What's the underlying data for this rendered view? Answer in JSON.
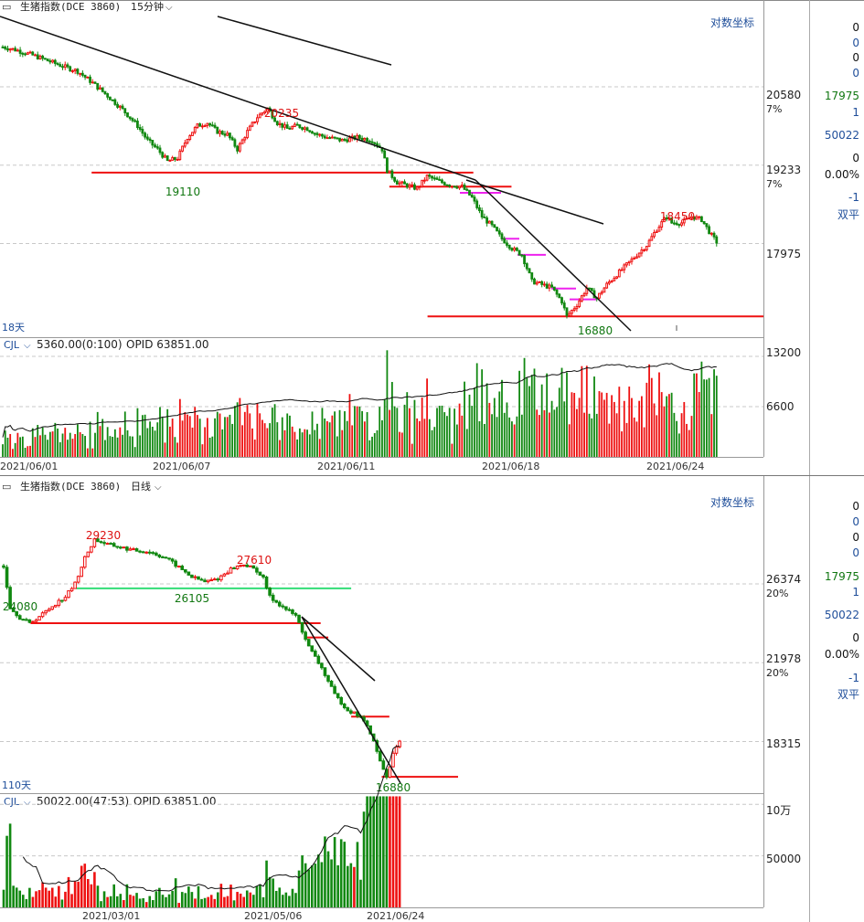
{
  "colors": {
    "up": "#ee1111",
    "down": "#118811",
    "ref_red": "#ee1111",
    "ref_green": "#33dd77",
    "ref_magenta": "#ee22ee",
    "trend": "#111111",
    "grid": "#c8c8c8",
    "axis_blue": "#1f4e9a",
    "label_red": "#dd1111",
    "label_green": "#117711"
  },
  "panels": [
    {
      "id": "intraday",
      "header": {
        "title": "生猪指数(DCE 3860)",
        "period": "15分钟",
        "log_label": "对数坐标"
      },
      "right_stats": {
        "s1": "0",
        "s2": "0",
        "s3": "0",
        "s4": "0",
        "price": "17975",
        "s6": "1",
        "vol": "50022",
        "s8": "0",
        "pct": "0.00%",
        "s10": "-1",
        "shuangping": "双平"
      },
      "span_label": "18天",
      "volume_header": {
        "label": "CJL",
        "value": "5360.00(0:100)",
        "opid": "OPID 63851.00"
      },
      "price_ticks": [
        {
          "value": 20580,
          "label": "20580",
          "pct": "7%"
        },
        {
          "value": 19233,
          "label": "19233",
          "pct": "7%"
        },
        {
          "value": 17975,
          "label": "17975",
          "pct": ""
        }
      ],
      "volume_ticks": [
        {
          "value": 13200,
          "label": "13200"
        },
        {
          "value": 6600,
          "label": "6600"
        }
      ],
      "dates": [
        "2021/06/01",
        "2021/06/07",
        "2021/06/11",
        "2021/06/18",
        "2021/06/24"
      ],
      "annotations": [
        {
          "text": "20235",
          "kind": "high"
        },
        {
          "text": "19110",
          "kind": "low"
        },
        {
          "text": "18450",
          "kind": "high"
        },
        {
          "text": "16880",
          "kind": "low"
        }
      ]
    },
    {
      "id": "daily",
      "header": {
        "title": "生猪指数(DCE 3860)",
        "period": "日线",
        "log_label": "对数坐标"
      },
      "right_stats": {
        "s1": "0",
        "s2": "0",
        "s3": "0",
        "s4": "0",
        "price": "17975",
        "s6": "1",
        "vol": "50022",
        "s8": "0",
        "pct": "0.00%",
        "s10": "-1",
        "shuangping": "双平"
      },
      "span_label": "110天",
      "volume_header": {
        "label": "CJL",
        "value": "50022.00(47:53)",
        "opid": "OPID 63851.00"
      },
      "price_ticks": [
        {
          "value": 26374,
          "label": "26374",
          "pct": "20%"
        },
        {
          "value": 21978,
          "label": "21978",
          "pct": "20%"
        },
        {
          "value": 18315,
          "label": "18315",
          "pct": ""
        }
      ],
      "volume_ticks": [
        {
          "value": 100000,
          "label": "10万"
        },
        {
          "value": 50000,
          "label": "50000"
        }
      ],
      "dates": [
        "2021/03/01",
        "2021/05/06",
        "2021/06/24"
      ],
      "annotations": [
        {
          "text": "29230",
          "kind": "high"
        },
        {
          "text": "27610",
          "kind": "high"
        },
        {
          "text": "26105",
          "kind": "low"
        },
        {
          "text": "24080",
          "kind": "low"
        },
        {
          "text": "16880",
          "kind": "low"
        }
      ]
    }
  ],
  "chart_data": [
    {
      "type": "candlestick",
      "title": "生猪指数(DCE 3860) 15分钟",
      "x_range": [
        "2021/06/01",
        "2021/06/25"
      ],
      "y_range": [
        16750,
        21800
      ],
      "log_scale": true,
      "waypoints": [
        [
          0,
          21300
        ],
        [
          5,
          21250
        ],
        [
          12,
          21150
        ],
        [
          18,
          21050
        ],
        [
          24,
          20950
        ],
        [
          30,
          20860
        ],
        [
          36,
          20650
        ],
        [
          42,
          20420
        ],
        [
          48,
          20180
        ],
        [
          54,
          19900
        ],
        [
          58,
          19650
        ],
        [
          62,
          19500
        ],
        [
          66,
          19300
        ],
        [
          70,
          19350
        ],
        [
          74,
          19700
        ],
        [
          78,
          19900
        ],
        [
          82,
          19950
        ],
        [
          86,
          19800
        ],
        [
          90,
          19750
        ],
        [
          94,
          19500
        ],
        [
          98,
          19800
        ],
        [
          102,
          20050
        ],
        [
          106,
          20200
        ],
        [
          110,
          19950
        ],
        [
          114,
          19850
        ],
        [
          118,
          19900
        ],
        [
          122,
          19850
        ],
        [
          126,
          19750
        ],
        [
          130,
          19700
        ],
        [
          136,
          19650
        ],
        [
          142,
          19700
        ],
        [
          148,
          19650
        ],
        [
          152,
          19500
        ],
        [
          154,
          19150
        ],
        [
          158,
          18950
        ],
        [
          162,
          18900
        ],
        [
          166,
          18850
        ],
        [
          170,
          19050
        ],
        [
          176,
          18950
        ],
        [
          180,
          18900
        ],
        [
          184,
          18880
        ],
        [
          188,
          18700
        ],
        [
          192,
          18400
        ],
        [
          196,
          18250
        ],
        [
          200,
          18050
        ],
        [
          204,
          17900
        ],
        [
          208,
          17800
        ],
        [
          212,
          17400
        ],
        [
          216,
          17350
        ],
        [
          220,
          17300
        ],
        [
          224,
          17100
        ],
        [
          226,
          16880
        ],
        [
          230,
          17050
        ],
        [
          234,
          17300
        ],
        [
          238,
          17150
        ],
        [
          242,
          17350
        ],
        [
          246,
          17500
        ],
        [
          250,
          17650
        ],
        [
          254,
          17800
        ],
        [
          258,
          17950
        ],
        [
          262,
          18200
        ],
        [
          266,
          18400
        ],
        [
          268,
          18300
        ],
        [
          272,
          18300
        ],
        [
          276,
          18400
        ],
        [
          280,
          18350
        ],
        [
          284,
          18100
        ],
        [
          286,
          18000
        ]
      ],
      "ref_lines": [
        {
          "y": 19110,
          "from": 0.12,
          "to": 0.62,
          "color": "ref_red"
        },
        {
          "y": 18880,
          "from": 0.51,
          "to": 0.67,
          "color": "ref_red"
        },
        {
          "y": 16880,
          "from": 0.56,
          "to": 1.0,
          "color": "ref_red"
        }
      ],
      "volume": {
        "y_max": 15600,
        "label": "CJL"
      }
    },
    {
      "type": "candlestick",
      "title": "生猪指数(DCE 3860) 日线",
      "x_range": [
        "2021/02/03",
        "2021/06/24"
      ],
      "y_range": [
        16600,
        31500
      ],
      "log_scale": true,
      "waypoints": [
        [
          0,
          27500
        ],
        [
          2,
          25000
        ],
        [
          5,
          24400
        ],
        [
          8,
          24080
        ],
        [
          12,
          24600
        ],
        [
          16,
          25200
        ],
        [
          19,
          25600
        ],
        [
          22,
          26400
        ],
        [
          25,
          28000
        ],
        [
          28,
          29230
        ],
        [
          32,
          28900
        ],
        [
          36,
          28700
        ],
        [
          40,
          28500
        ],
        [
          45,
          28400
        ],
        [
          50,
          28000
        ],
        [
          54,
          27400
        ],
        [
          58,
          26800
        ],
        [
          62,
          26500
        ],
        [
          66,
          26700
        ],
        [
          70,
          27300
        ],
        [
          74,
          27610
        ],
        [
          78,
          27200
        ],
        [
          80,
          26700
        ],
        [
          82,
          25600
        ],
        [
          86,
          25000
        ],
        [
          90,
          24500
        ],
        [
          94,
          22800
        ],
        [
          98,
          21700
        ],
        [
          102,
          20400
        ],
        [
          106,
          19700
        ],
        [
          110,
          19400
        ],
        [
          113,
          18700
        ],
        [
          116,
          17500
        ],
        [
          118,
          16880
        ],
        [
          120,
          17800
        ],
        [
          122,
          18300
        ]
      ],
      "ref_lines": [
        {
          "y": 26105,
          "from": 0.1,
          "to": 0.46,
          "color": "ref_green"
        },
        {
          "y": 24080,
          "from": 0.04,
          "to": 0.42,
          "color": "ref_red"
        },
        {
          "y": 23300,
          "from": 0.4,
          "to": 0.43,
          "color": "ref_red"
        },
        {
          "y": 19400,
          "from": 0.46,
          "to": 0.51,
          "color": "ref_red"
        },
        {
          "y": 16880,
          "from": 0.5,
          "to": 0.6,
          "color": "ref_red"
        }
      ],
      "volume": {
        "y_max": 110000,
        "label": "CJL"
      }
    }
  ]
}
